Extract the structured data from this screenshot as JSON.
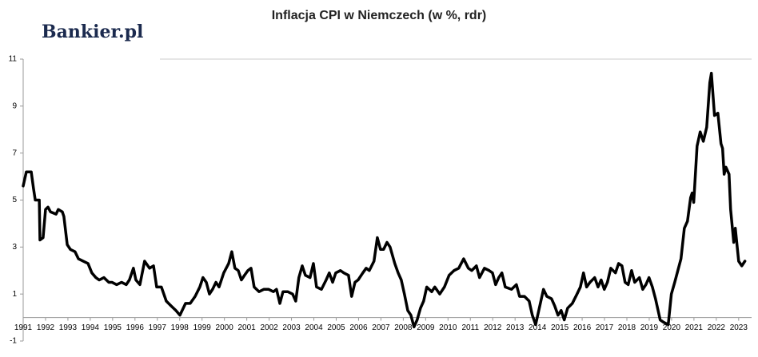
{
  "logo": "Bankier.pl",
  "chart_data": {
    "type": "line",
    "title": "Inflacja CPI w Niemczech (w %, rdr)",
    "x": [
      1991.0,
      1991.14,
      1991.36,
      1991.46,
      1991.54,
      1991.72,
      1991.75,
      1991.89,
      1992.0,
      1992.11,
      1992.22,
      1992.47,
      1992.57,
      1992.75,
      1992.82,
      1992.97,
      1993.11,
      1993.32,
      1993.47,
      1993.68,
      1993.9,
      1994.07,
      1994.25,
      1994.4,
      1994.61,
      1994.83,
      1994.97,
      1995.18,
      1995.4,
      1995.61,
      1995.75,
      1995.93,
      1996.04,
      1996.22,
      1996.43,
      1996.65,
      1996.83,
      1996.97,
      1997.18,
      1997.4,
      1997.61,
      1997.83,
      1998.01,
      1998.26,
      1998.47,
      1998.69,
      1998.9,
      1999.04,
      1999.19,
      1999.33,
      1999.47,
      1999.62,
      1999.76,
      1999.97,
      2000.19,
      2000.33,
      2000.47,
      2000.62,
      2000.76,
      2000.9,
      2001.05,
      2001.19,
      2001.33,
      2001.55,
      2001.76,
      2001.98,
      2002.19,
      2002.33,
      2002.48,
      2002.62,
      2002.83,
      2003.05,
      2003.19,
      2003.33,
      2003.48,
      2003.62,
      2003.83,
      2003.98,
      2004.12,
      2004.34,
      2004.55,
      2004.69,
      2004.84,
      2004.98,
      2005.19,
      2005.34,
      2005.55,
      2005.69,
      2005.84,
      2005.98,
      2006.19,
      2006.34,
      2006.48,
      2006.69,
      2006.84,
      2006.98,
      2007.12,
      2007.27,
      2007.41,
      2007.62,
      2007.77,
      2007.91,
      2008.05,
      2008.2,
      2008.34,
      2008.48,
      2008.62,
      2008.77,
      2008.91,
      2009.05,
      2009.27,
      2009.41,
      2009.63,
      2009.84,
      2010.05,
      2010.27,
      2010.48,
      2010.7,
      2010.91,
      2011.06,
      2011.27,
      2011.41,
      2011.63,
      2011.84,
      2011.99,
      2012.13,
      2012.27,
      2012.41,
      2012.56,
      2012.84,
      2013.06,
      2013.2,
      2013.42,
      2013.63,
      2013.77,
      2013.92,
      2014.06,
      2014.27,
      2014.42,
      2014.63,
      2014.77,
      2014.92,
      2015.06,
      2015.2,
      2015.35,
      2015.56,
      2015.77,
      2015.92,
      2016.06,
      2016.2,
      2016.35,
      2016.56,
      2016.71,
      2016.85,
      2016.99,
      2017.13,
      2017.28,
      2017.49,
      2017.63,
      2017.78,
      2017.92,
      2018.06,
      2018.21,
      2018.35,
      2018.56,
      2018.71,
      2018.85,
      2018.99,
      2019.14,
      2019.28,
      2019.35,
      2019.49,
      2019.64,
      2019.85,
      2019.99,
      2020.14,
      2020.28,
      2020.42,
      2020.57,
      2020.71,
      2020.85,
      2020.92,
      2020.99,
      2021.14,
      2021.28,
      2021.42,
      2021.57,
      2021.71,
      2021.78,
      2021.92,
      2022.07,
      2022.21,
      2022.28,
      2022.35,
      2022.43,
      2022.57,
      2022.64,
      2022.78,
      2022.85,
      2023.0,
      2023.14,
      2023.28
    ],
    "series": [
      {
        "name": "CPI",
        "color": "#000000",
        "values": [
          5.6,
          6.2,
          6.2,
          5.5,
          5.0,
          5.0,
          3.3,
          3.4,
          4.6,
          4.7,
          4.5,
          4.4,
          4.6,
          4.5,
          4.3,
          3.1,
          2.9,
          2.8,
          2.5,
          2.4,
          2.3,
          1.9,
          1.7,
          1.6,
          1.7,
          1.5,
          1.5,
          1.4,
          1.5,
          1.4,
          1.6,
          2.1,
          1.6,
          1.4,
          2.4,
          2.1,
          2.2,
          1.3,
          1.3,
          0.7,
          0.5,
          0.3,
          0.1,
          0.6,
          0.6,
          0.9,
          1.3,
          1.7,
          1.5,
          1.0,
          1.2,
          1.5,
          1.3,
          1.9,
          2.3,
          2.8,
          2.1,
          2.0,
          1.6,
          1.8,
          2.0,
          2.1,
          1.3,
          1.1,
          1.2,
          1.2,
          1.1,
          1.2,
          0.6,
          1.1,
          1.1,
          1.0,
          0.7,
          1.7,
          2.2,
          1.8,
          1.7,
          2.3,
          1.3,
          1.2,
          1.6,
          1.9,
          1.5,
          1.9,
          2.0,
          1.9,
          1.8,
          0.9,
          1.5,
          1.6,
          1.9,
          2.1,
          2.0,
          2.4,
          3.4,
          2.9,
          2.9,
          3.2,
          3.0,
          2.3,
          1.9,
          1.6,
          1.0,
          0.3,
          0.1,
          -0.4,
          -0.1,
          0.4,
          0.7,
          1.3,
          1.1,
          1.3,
          1.0,
          1.3,
          1.8,
          2.0,
          2.1,
          2.5,
          2.1,
          2.0,
          2.2,
          1.7,
          2.1,
          2.0,
          1.9,
          1.4,
          1.7,
          1.9,
          1.3,
          1.2,
          1.4,
          0.9,
          0.9,
          0.7,
          0.1,
          -0.3,
          0.3,
          1.2,
          0.9,
          0.8,
          0.5,
          0.1,
          0.3,
          -0.1,
          0.4,
          0.6,
          1.0,
          1.3,
          1.9,
          1.3,
          1.5,
          1.7,
          1.3,
          1.6,
          1.2,
          1.5,
          2.1,
          1.9,
          2.3,
          2.2,
          1.5,
          1.4,
          2.0,
          1.5,
          1.7,
          1.2,
          1.4,
          1.7,
          1.3,
          0.8,
          0.5,
          -0.1,
          -0.2,
          -0.3,
          1.0,
          1.5,
          2.0,
          2.5,
          3.8,
          4.1,
          5.1,
          5.3,
          4.9,
          7.3,
          7.9,
          7.5,
          8.1,
          10.0,
          10.4,
          8.6,
          8.7,
          7.4,
          7.2,
          6.1,
          6.4,
          6.1,
          4.6,
          3.2,
          3.8,
          2.4,
          2.2,
          2.4
        ]
      }
    ],
    "xlim": [
      1991,
      2023.4
    ],
    "xticks": [
      1991,
      1992,
      1993,
      1994,
      1995,
      1996,
      1997,
      1998,
      1999,
      2000,
      2001,
      2002,
      2003,
      2004,
      2005,
      2006,
      2007,
      2008,
      2009,
      2010,
      2011,
      2012,
      2013,
      2014,
      2015,
      2016,
      2017,
      2018,
      2019,
      2020,
      2021,
      2022,
      2023
    ],
    "ylim": [
      -1,
      11
    ],
    "yticks": [
      -1,
      1,
      3,
      5,
      7,
      9,
      11
    ],
    "grid": false
  }
}
